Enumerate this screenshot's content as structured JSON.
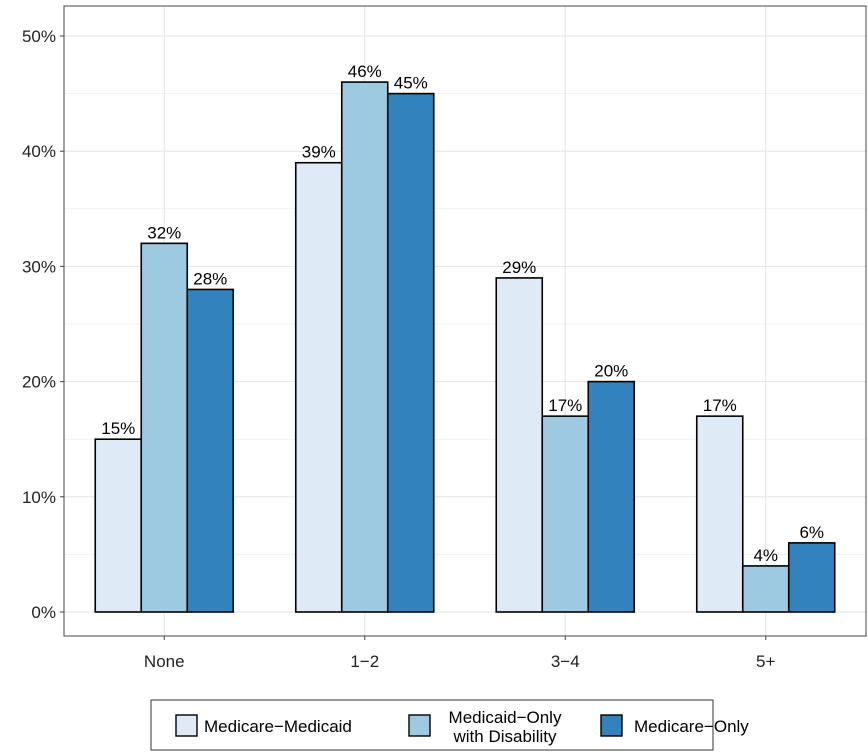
{
  "chart_data": {
    "type": "bar",
    "categories": [
      "None",
      "1−2",
      "3−4",
      "5+"
    ],
    "series": [
      {
        "name": "Medicare−Medicaid",
        "name_lines": [
          "Medicare−Medicaid"
        ],
        "color": "#deebf7",
        "values": [
          15,
          39,
          29,
          17
        ],
        "labels": [
          "15%",
          "39%",
          "29%",
          "17%"
        ]
      },
      {
        "name": "Medicaid−Only with Disability",
        "name_lines": [
          "Medicaid−Only",
          "with Disability"
        ],
        "color": "#9ecae1",
        "values": [
          32,
          46,
          17,
          4
        ],
        "labels": [
          "32%",
          "46%",
          "17%",
          "4%"
        ]
      },
      {
        "name": "Medicare−Only",
        "name_lines": [
          "Medicare−Only"
        ],
        "color": "#3182bd",
        "values": [
          28,
          45,
          20,
          6
        ],
        "labels": [
          "28%",
          "45%",
          "20%",
          "6%"
        ]
      }
    ],
    "title": "",
    "xlabel": "",
    "ylabel": "",
    "ylim": [
      0,
      52
    ],
    "yticks": [
      0,
      10,
      20,
      30,
      40,
      50
    ],
    "ytick_labels": [
      "0%",
      "10%",
      "20%",
      "30%",
      "40%",
      "50%"
    ],
    "grid": true,
    "legend_position": "bottom"
  }
}
